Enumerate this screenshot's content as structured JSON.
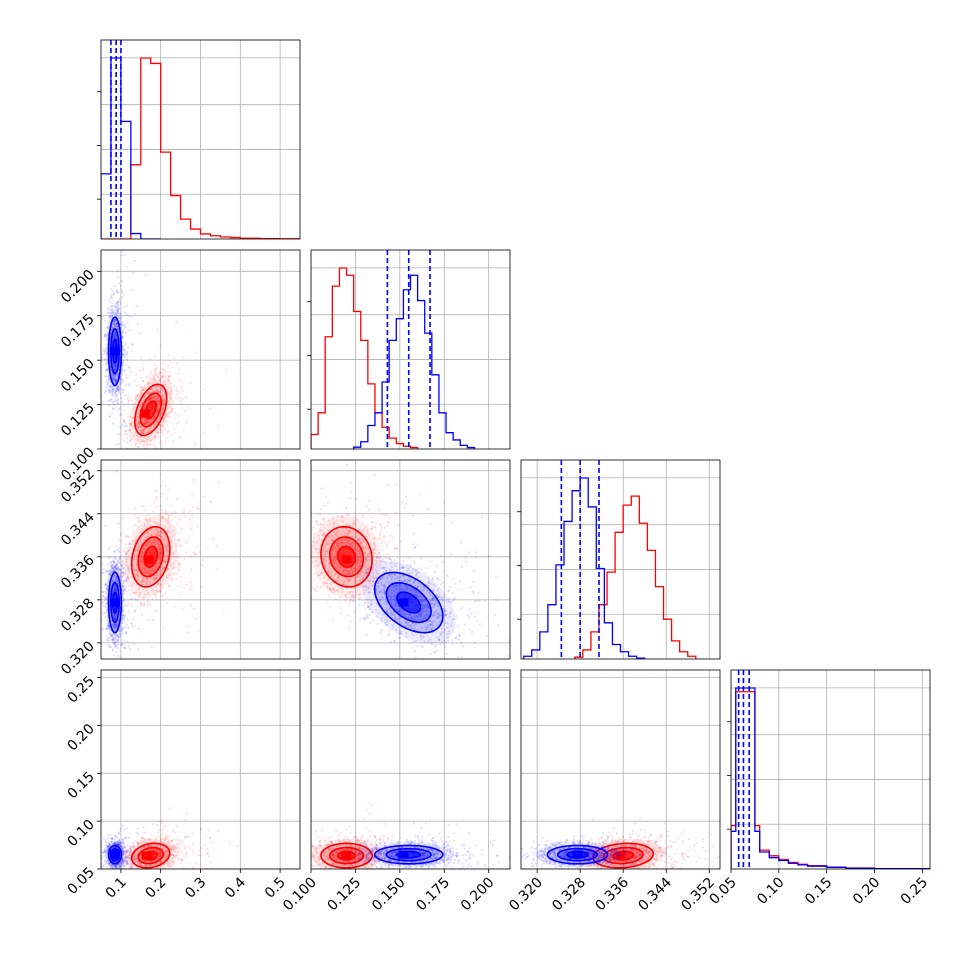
{
  "colors": {
    "series_a": "#ff0000",
    "series_b": "#0000ff",
    "grid": "#b0b0b0"
  },
  "chart_data": {
    "type": "scatter",
    "kind": "corner-plot",
    "grid": true,
    "series": [
      {
        "id": "a",
        "color": "#ff0000"
      },
      {
        "id": "b",
        "color": "#0000ff"
      }
    ],
    "parameters": [
      {
        "index": 0,
        "range": [
          0.05,
          0.55
        ],
        "ticks": [
          0.1,
          0.2,
          0.3,
          0.4,
          0.5
        ],
        "tick_labels": [
          "0.1",
          "0.2",
          "0.3",
          "0.4",
          "0.5"
        ]
      },
      {
        "index": 1,
        "range": [
          0.1,
          0.212
        ],
        "ticks": [
          0.1,
          0.125,
          0.15,
          0.175,
          0.2
        ],
        "tick_labels": [
          "0.100",
          "0.125",
          "0.150",
          "0.175",
          "0.200"
        ]
      },
      {
        "index": 2,
        "range": [
          0.317,
          0.354
        ],
        "ticks": [
          0.32,
          0.328,
          0.336,
          0.344,
          0.352
        ],
        "tick_labels": [
          "0.320",
          "0.328",
          "0.336",
          "0.344",
          "0.352"
        ]
      },
      {
        "index": 3,
        "range": [
          0.05,
          0.258
        ],
        "ticks": [
          0.05,
          0.1,
          0.15,
          0.2,
          0.25
        ],
        "tick_labels": [
          "0.05",
          "0.10",
          "0.15",
          "0.20",
          "0.25"
        ]
      }
    ],
    "marginals": [
      {
        "param": 0,
        "series_b_quantiles": [
          0.075,
          0.088,
          0.1
        ],
        "series_a": {
          "edges": [
            0.05,
            0.075,
            0.1,
            0.125,
            0.15,
            0.175,
            0.2,
            0.225,
            0.25,
            0.275,
            0.3,
            0.325,
            0.35,
            0.375,
            0.4,
            0.45,
            0.5,
            0.55
          ],
          "heights": [
            0,
            0,
            0,
            0.41,
            1.0,
            0.97,
            0.48,
            0.24,
            0.11,
            0.055,
            0.028,
            0.018,
            0.011,
            0.008,
            0.004,
            0.002,
            0.001
          ]
        },
        "series_b": {
          "edges": [
            0.05,
            0.075,
            0.1,
            0.125,
            0.15,
            0.175,
            0.2
          ],
          "heights": [
            0.36,
            1.0,
            0.65,
            0.03,
            0,
            0
          ]
        }
      },
      {
        "param": 1,
        "series_b_quantiles": [
          0.143,
          0.155,
          0.167
        ],
        "series_a": {
          "edges": [
            0.1,
            0.104,
            0.108,
            0.112,
            0.116,
            0.12,
            0.124,
            0.128,
            0.132,
            0.136,
            0.14,
            0.144,
            0.148,
            0.152,
            0.156,
            0.16
          ],
          "heights": [
            0.08,
            0.2,
            0.62,
            0.9,
            1.0,
            0.96,
            0.76,
            0.6,
            0.36,
            0.2,
            0.12,
            0.06,
            0.03,
            0.015,
            0.008
          ]
        },
        "series_b": {
          "edges": [
            0.124,
            0.128,
            0.132,
            0.136,
            0.14,
            0.144,
            0.148,
            0.152,
            0.156,
            0.16,
            0.164,
            0.168,
            0.172,
            0.176,
            0.18,
            0.184,
            0.188,
            0.192
          ],
          "heights": [
            0.01,
            0.04,
            0.13,
            0.2,
            0.37,
            0.6,
            0.72,
            0.88,
            0.96,
            0.82,
            0.64,
            0.41,
            0.2,
            0.09,
            0.05,
            0.02,
            0.008
          ]
        }
      },
      {
        "param": 2,
        "series_b_quantiles": [
          0.3245,
          0.328,
          0.3315
        ],
        "series_a": {
          "edges": [
            0.327,
            0.3285,
            0.33,
            0.3315,
            0.333,
            0.3345,
            0.336,
            0.3375,
            0.339,
            0.3405,
            0.342,
            0.3435,
            0.345,
            0.3465,
            0.348,
            0.3495
          ],
          "heights": [
            0.01,
            0.05,
            0.15,
            0.3,
            0.48,
            0.7,
            0.85,
            0.9,
            0.75,
            0.6,
            0.4,
            0.22,
            0.1,
            0.04,
            0.015
          ]
        },
        "series_b": {
          "edges": [
            0.3175,
            0.319,
            0.3205,
            0.322,
            0.3235,
            0.325,
            0.3265,
            0.328,
            0.3295,
            0.331,
            0.3325,
            0.334,
            0.3355,
            0.337,
            0.3385,
            0.34
          ],
          "heights": [
            0.015,
            0.05,
            0.15,
            0.3,
            0.52,
            0.76,
            0.93,
            1.0,
            0.84,
            0.5,
            0.2,
            0.08,
            0.04,
            0.015,
            0.005
          ]
        }
      },
      {
        "param": 3,
        "series_b_quantiles": [
          0.058,
          0.063,
          0.069
        ],
        "series_a": {
          "edges": [
            0.05,
            0.055,
            0.06,
            0.065,
            0.07,
            0.075,
            0.08,
            0.09,
            0.1,
            0.11,
            0.12,
            0.13,
            0.15,
            0.17,
            0.2,
            0.258
          ],
          "heights": [
            0.23,
            0.94,
            0.94,
            0.94,
            0.94,
            0.23,
            0.1,
            0.07,
            0.05,
            0.035,
            0.025,
            0.018,
            0.01,
            0.005,
            0.002
          ]
        },
        "series_b": {
          "edges": [
            0.05,
            0.055,
            0.06,
            0.065,
            0.07,
            0.075,
            0.08,
            0.09,
            0.1,
            0.11,
            0.12,
            0.13,
            0.15,
            0.17,
            0.2,
            0.258
          ],
          "heights": [
            0.2,
            0.96,
            0.96,
            0.96,
            0.96,
            0.2,
            0.09,
            0.06,
            0.045,
            0.03,
            0.022,
            0.015,
            0.009,
            0.004,
            0.002
          ]
        }
      }
    ],
    "joint": [
      {
        "x_param": 0,
        "y_param": 1,
        "series_a": {
          "mean": [
            0.175,
            0.122
          ],
          "sd": [
            0.025,
            0.009
          ],
          "rho": 0.45,
          "peak": [
            0.16,
            0.12
          ]
        },
        "series_b": {
          "mean": [
            0.085,
            0.155
          ],
          "sd": [
            0.01,
            0.012
          ],
          "rho": 0.0,
          "peak": [
            0.085,
            0.155
          ]
        }
      },
      {
        "x_param": 0,
        "y_param": 2,
        "series_a": {
          "mean": [
            0.175,
            0.336
          ],
          "sd": [
            0.03,
            0.0035
          ],
          "rho": 0.25,
          "peak": [
            0.17,
            0.3355
          ]
        },
        "series_b": {
          "mean": [
            0.085,
            0.3275
          ],
          "sd": [
            0.01,
            0.0035
          ],
          "rho": 0.0,
          "peak": [
            0.085,
            0.3275
          ]
        }
      },
      {
        "x_param": 1,
        "y_param": 2,
        "series_a": {
          "mean": [
            0.12,
            0.336
          ],
          "sd": [
            0.009,
            0.0035
          ],
          "rho": -0.1,
          "peak": [
            0.12,
            0.3355
          ]
        },
        "series_b": {
          "mean": [
            0.155,
            0.3275
          ],
          "sd": [
            0.012,
            0.0035
          ],
          "rho": -0.45,
          "peak": [
            0.152,
            0.3275
          ]
        }
      },
      {
        "x_param": 0,
        "y_param": 3,
        "series_a": {
          "mean": [
            0.175,
            0.064
          ],
          "sd": [
            0.03,
            0.008
          ],
          "rho": 0.2,
          "peak": [
            0.165,
            0.064
          ]
        },
        "series_b": {
          "mean": [
            0.085,
            0.065
          ],
          "sd": [
            0.01,
            0.006
          ],
          "rho": 0.0,
          "peak": [
            0.085,
            0.065
          ]
        }
      },
      {
        "x_param": 1,
        "y_param": 3,
        "series_a": {
          "mean": [
            0.12,
            0.064
          ],
          "sd": [
            0.009,
            0.008
          ],
          "rho": 0.0,
          "peak": [
            0.12,
            0.064
          ]
        },
        "series_b": {
          "mean": [
            0.155,
            0.065
          ],
          "sd": [
            0.012,
            0.006
          ],
          "rho": 0.0,
          "peak": [
            0.152,
            0.065
          ]
        }
      },
      {
        "x_param": 2,
        "y_param": 3,
        "series_a": {
          "mean": [
            0.336,
            0.064
          ],
          "sd": [
            0.0035,
            0.008
          ],
          "rho": 0.15,
          "peak": [
            0.3355,
            0.064
          ]
        },
        "series_b": {
          "mean": [
            0.3275,
            0.065
          ],
          "sd": [
            0.0035,
            0.006
          ],
          "rho": 0.0,
          "peak": [
            0.3275,
            0.065
          ]
        }
      }
    ]
  }
}
